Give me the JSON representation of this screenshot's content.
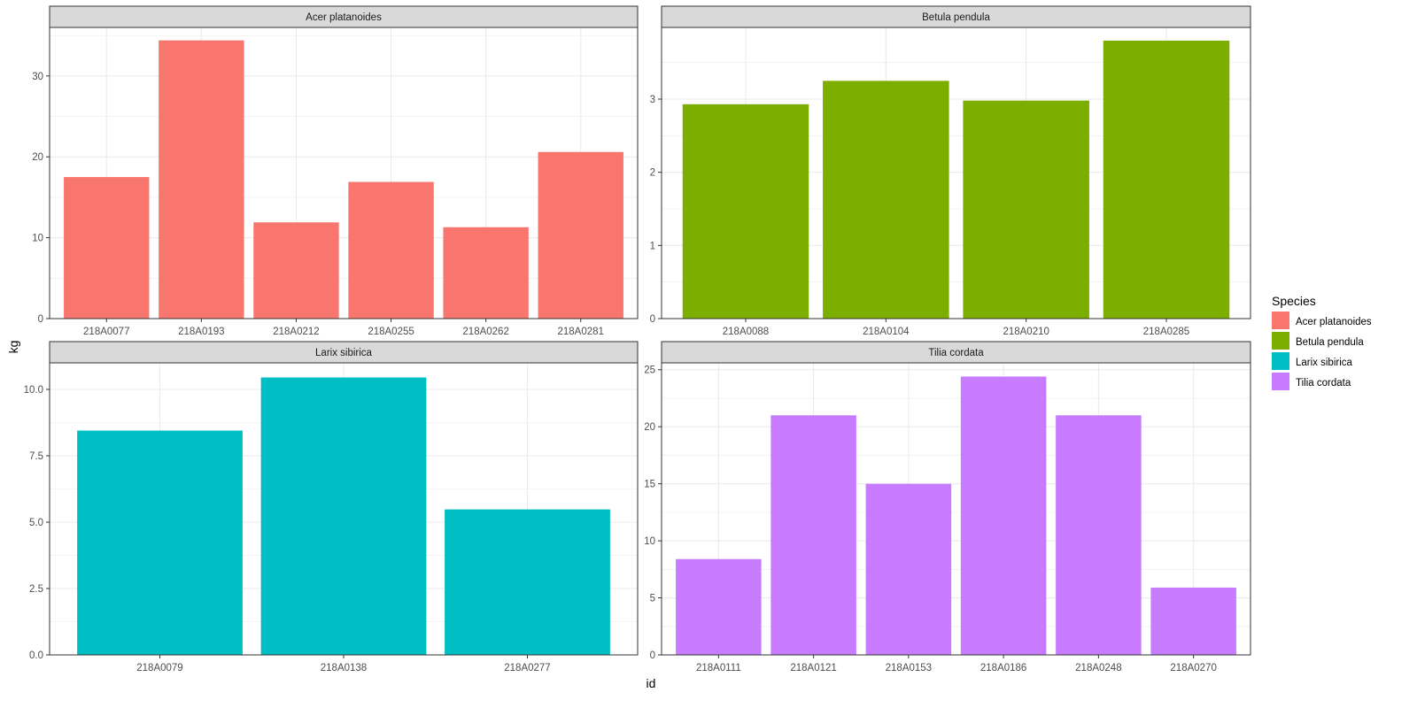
{
  "colors": {
    "Acer platanoides": "#F8766D",
    "Betula pendula": "#7CAE00",
    "Larix sibirica": "#00BFC4",
    "Tilia cordata": "#C77CFF",
    "strip_fill": "#D9D9D9",
    "grid": "#EBEBEB",
    "axis_text": "#4D4D4D"
  },
  "chart_data": {
    "type": "bar",
    "xlabel": "id",
    "ylabel": "kg",
    "grid": true,
    "legend_placement": "right",
    "legend": {
      "title": "Species",
      "items": [
        "Acer platanoides",
        "Betula pendula",
        "Larix sibirica",
        "Tilia cordata"
      ]
    },
    "panels": [
      {
        "title": "Acer platanoides",
        "categories": [
          "218A0077",
          "218A0193",
          "218A0212",
          "218A0255",
          "218A0262",
          "218A0281"
        ],
        "values": [
          17.5,
          34.4,
          11.9,
          16.9,
          11.3,
          20.6
        ],
        "ylim": [
          0,
          36
        ],
        "yticks": [
          0,
          10,
          20,
          30
        ],
        "ytick_labels": [
          "0",
          "10",
          "20",
          "30"
        ]
      },
      {
        "title": "Betula pendula",
        "categories": [
          "218A0088",
          "218A0104",
          "218A0210",
          "218A0285"
        ],
        "values": [
          2.93,
          3.25,
          2.98,
          3.8
        ],
        "ylim": [
          0,
          3.98
        ],
        "yticks": [
          0,
          1,
          2,
          3
        ],
        "ytick_labels": [
          "0",
          "1",
          "2",
          "3"
        ]
      },
      {
        "title": "Larix sibirica",
        "categories": [
          "218A0079",
          "218A0138",
          "218A0277"
        ],
        "values": [
          8.45,
          10.45,
          5.48
        ],
        "ylim": [
          0,
          11
        ],
        "yticks": [
          0,
          2.5,
          5,
          7.5,
          10
        ],
        "ytick_labels": [
          "0.0",
          "2.5",
          "5.0",
          "7.5",
          "10.0"
        ]
      },
      {
        "title": "Tilia cordata",
        "categories": [
          "218A0111",
          "218A0121",
          "218A0153",
          "218A0186",
          "218A0248",
          "218A0270"
        ],
        "values": [
          8.4,
          21.0,
          15.0,
          24.4,
          21.0,
          5.9
        ],
        "ylim": [
          0,
          25.6
        ],
        "yticks": [
          0,
          5,
          10,
          15,
          20,
          25
        ],
        "ytick_labels": [
          "0",
          "5",
          "10",
          "15",
          "20",
          "25"
        ]
      }
    ]
  }
}
